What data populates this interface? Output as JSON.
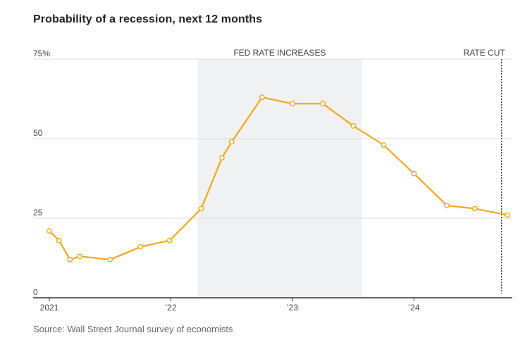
{
  "title": "Probability of a recession, next 12 months",
  "source": "Source: Wall Street Journal survey of economists",
  "colors": {
    "line": "#f0a820",
    "shade": "#f0f1f3",
    "grid": "#dddddd",
    "axis": "#333333",
    "marker_fill": "#ffffff"
  },
  "chart_data": {
    "type": "line",
    "title": "Probability of a recession, next 12 months",
    "xlabel": "",
    "ylabel": "",
    "ylim": [
      0,
      75
    ],
    "xlim": [
      2021.0,
      2024.85
    ],
    "y_ticks": [
      {
        "value": 75,
        "label": "75%"
      },
      {
        "value": 50,
        "label": "50"
      },
      {
        "value": 25,
        "label": "25"
      },
      {
        "value": 0,
        "label": "0"
      }
    ],
    "x_ticks": [
      {
        "value": 2021.0,
        "label": "2021"
      },
      {
        "value": 2022.0,
        "label": "’22"
      },
      {
        "value": 2023.0,
        "label": "’23"
      },
      {
        "value": 2024.0,
        "label": "’24"
      }
    ],
    "shaded_periods": [
      {
        "label": "FED RATE INCREASES",
        "start": 2022.22,
        "end": 2023.57
      }
    ],
    "annotations": [
      {
        "label": "RATE CUT",
        "x": 2024.72
      }
    ],
    "series": [
      {
        "name": "Probability of a recession",
        "x": [
          2021.0,
          2021.08,
          2021.17,
          2021.25,
          2021.5,
          2021.75,
          2021.99,
          2022.25,
          2022.42,
          2022.5,
          2022.75,
          2023.0,
          2023.25,
          2023.5,
          2023.75,
          2024.0,
          2024.27,
          2024.5,
          2024.77
        ],
        "values": [
          21,
          18,
          12,
          13,
          12,
          16,
          18,
          28,
          44,
          49,
          63,
          61,
          61,
          54,
          48,
          39,
          29,
          28,
          26
        ]
      }
    ]
  }
}
